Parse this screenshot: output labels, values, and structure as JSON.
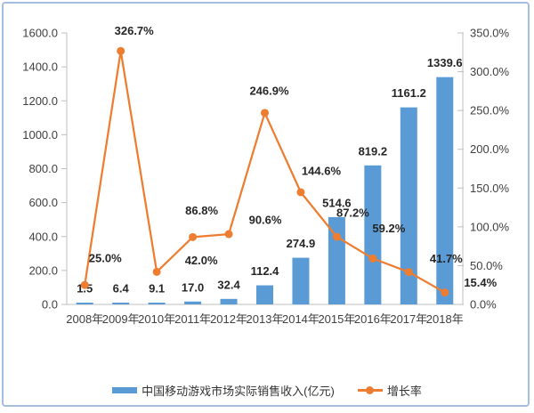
{
  "chart_data": {
    "type": "bar",
    "subtype": "combo-bar-line",
    "title": "",
    "categories": [
      "2008年",
      "2009年",
      "2010年",
      "2011年",
      "2012年",
      "2013年",
      "2014年",
      "2015年",
      "2016年",
      "2017年",
      "2018年"
    ],
    "series": [
      {
        "name": "中国移动游戏市场实际销售收入(亿元)",
        "type": "bar",
        "axis": "left",
        "color": "#5B9BD5",
        "values": [
          1.5,
          6.4,
          9.1,
          17.0,
          32.4,
          112.4,
          274.9,
          514.6,
          819.2,
          1161.2,
          1339.6
        ],
        "labels": [
          "1.5",
          "6.4",
          "9.1",
          "17.0",
          "32.4",
          "112.4",
          "274.9",
          "514.6",
          "819.2",
          "1161.2",
          "1339.6"
        ]
      },
      {
        "name": "增长率",
        "type": "line",
        "axis": "right",
        "color": "#ED7D31",
        "values": [
          25.0,
          326.7,
          42.0,
          86.8,
          90.6,
          246.9,
          144.6,
          87.2,
          59.2,
          41.7,
          15.4
        ],
        "labels": [
          "25.0%",
          "326.7%",
          "42.0%",
          "86.8%",
          "90.6%",
          "246.9%",
          "144.6%",
          "87.2%",
          "59.2%",
          "41.7%",
          "15.4%"
        ]
      }
    ],
    "axes": {
      "left": {
        "min": 0,
        "max": 1600,
        "tick_labels_top_to_bottom": [
          "1600.0",
          "1400.0",
          "1200.0",
          "1000.0",
          "800.0",
          "600.0",
          "400.0",
          "200.0",
          "0.0"
        ]
      },
      "right": {
        "min": 0,
        "max": 350,
        "tick_labels_top_to_bottom": [
          "350.0%",
          "300.0%",
          "250.0%",
          "200.0%",
          "150.0%",
          "100.0%",
          "50.0%",
          "0.0%"
        ]
      }
    },
    "grid": false,
    "legend_position": "bottom"
  },
  "colors": {
    "bar": "#5B9BD5",
    "line": "#ED7D31",
    "axis_line": "#BFBFBF",
    "tick_text": "#404040",
    "data_label_text": "#262626",
    "frame_border": "#A5BEDF"
  }
}
